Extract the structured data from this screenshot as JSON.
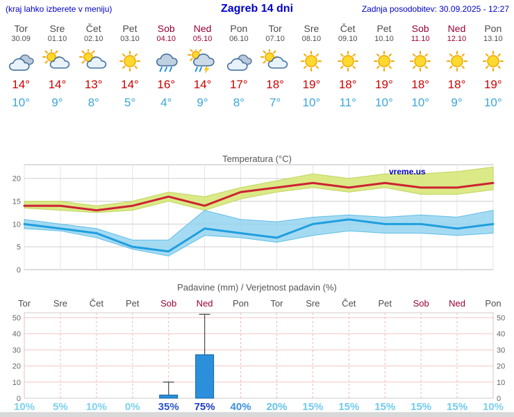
{
  "header": {
    "hint": "(kraj lahko izberete v meniju)",
    "title": "Zagreb 14 dni",
    "updated": "Zadnja posodobitev: 30.09.2025 - 12:27"
  },
  "colors": {
    "header_text": "#0000cc",
    "weekday_text": "#4d4d4d",
    "weekend_text": "#990033",
    "tmax_text": "#cc0000",
    "tmin_text": "#3aa5dd",
    "bar_fill": "#2b8fdc",
    "bar_border": "#15639f",
    "max_band_fill": "#d9e87f",
    "max_band_edge": "#c2d45e",
    "min_band_fill": "#8fd2ef",
    "min_band_edge": "#5fbde8",
    "watermark_blue": "#0000bb"
  },
  "days": [
    {
      "name": "Tor",
      "date": "30.09",
      "icon": "cloudy",
      "tmax": "14°",
      "tmin": "10°",
      "weekend": false
    },
    {
      "name": "Sre",
      "date": "01.10",
      "icon": "partly-cloudy",
      "tmax": "14°",
      "tmin": "9°",
      "weekend": false
    },
    {
      "name": "Čet",
      "date": "02.10",
      "icon": "partly-cloudy",
      "tmax": "13°",
      "tmin": "8°",
      "weekend": false
    },
    {
      "name": "Pet",
      "date": "03.10",
      "icon": "sunny",
      "tmax": "14°",
      "tmin": "5°",
      "weekend": false
    },
    {
      "name": "Sob",
      "date": "04.10",
      "icon": "rain",
      "tmax": "16°",
      "tmin": "4°",
      "weekend": true
    },
    {
      "name": "Ned",
      "date": "05.10",
      "icon": "thunder-showers",
      "tmax": "14°",
      "tmin": "9°",
      "weekend": true
    },
    {
      "name": "Pon",
      "date": "06.10",
      "icon": "cloudy",
      "tmax": "17°",
      "tmin": "8°",
      "weekend": false
    },
    {
      "name": "Tor",
      "date": "07.10",
      "icon": "partly-cloudy",
      "tmax": "18°",
      "tmin": "7°",
      "weekend": false
    },
    {
      "name": "Sre",
      "date": "08.10",
      "icon": "sunny",
      "tmax": "19°",
      "tmin": "10°",
      "weekend": false
    },
    {
      "name": "Čet",
      "date": "09.10",
      "icon": "sunny",
      "tmax": "18°",
      "tmin": "11°",
      "weekend": false
    },
    {
      "name": "Pet",
      "date": "10.10",
      "icon": "sunny",
      "tmax": "19°",
      "tmin": "10°",
      "weekend": false
    },
    {
      "name": "Sob",
      "date": "11.10",
      "icon": "sunny",
      "tmax": "18°",
      "tmin": "10°",
      "weekend": true
    },
    {
      "name": "Ned",
      "date": "12.10",
      "icon": "sunny",
      "tmax": "18°",
      "tmin": "9°",
      "weekend": true
    },
    {
      "name": "Pon",
      "date": "13.10",
      "icon": "sunny",
      "tmax": "19°",
      "tmin": "10°",
      "weekend": false
    }
  ],
  "chart_data": [
    {
      "type": "line",
      "title": "Temperatura (°C)",
      "watermark": "vreme.us",
      "x_labels": [
        "Tor 30.09",
        "Sre 01.10",
        "Čet 02.10",
        "Pet 03.10",
        "Sob 04.10",
        "Ned 05.10",
        "Pon 06.10",
        "Tor 07.10",
        "Sre 08.10",
        "Čet 09.10",
        "Pet 10.10",
        "Sob 11.10",
        "Ned 12.10",
        "Pon 13.10"
      ],
      "ylim": [
        0,
        23
      ],
      "yticks": [
        0,
        5,
        10,
        15,
        20
      ],
      "grid": true,
      "series": [
        {
          "name": "max-temp",
          "color": "#cc2233",
          "values": [
            14,
            14,
            13,
            14,
            16,
            14,
            17,
            18,
            19,
            18,
            19,
            18,
            18,
            19
          ]
        },
        {
          "name": "min-temp",
          "color": "#1f9ede",
          "values": [
            10,
            9,
            8,
            5,
            4,
            9,
            8,
            7,
            10,
            11,
            10,
            10,
            9,
            10
          ]
        },
        {
          "name": "max-range-upper",
          "color": "#d9e87f",
          "values": [
            15,
            15,
            14,
            15,
            17,
            16,
            18,
            19.5,
            21,
            20,
            21,
            21,
            21.5,
            22.5
          ]
        },
        {
          "name": "max-range-lower",
          "color": "#d9e87f",
          "values": [
            13.5,
            13,
            12.5,
            13,
            15,
            13,
            15.5,
            17,
            18,
            17,
            18,
            16.5,
            16.5,
            17.5
          ]
        },
        {
          "name": "min-range-upper",
          "color": "#8fd2ef",
          "values": [
            11,
            10,
            9,
            6.5,
            6.5,
            13,
            11,
            10.5,
            11.5,
            12,
            11.5,
            12,
            11.5,
            13
          ]
        },
        {
          "name": "min-range-lower",
          "color": "#8fd2ef",
          "values": [
            9,
            8.5,
            7,
            4.5,
            3,
            7.5,
            7,
            6,
            7.5,
            8.5,
            8,
            8,
            7.5,
            8
          ]
        }
      ]
    },
    {
      "type": "bar",
      "title": "Padavine (mm) / Verjetnost padavin (%)",
      "categories": [
        "Tor",
        "Sre",
        "Čet",
        "Pet",
        "Sob",
        "Ned",
        "Pon",
        "Tor",
        "Sre",
        "Čet",
        "Pet",
        "Sob",
        "Ned",
        "Pon"
      ],
      "weekend_flags": [
        false,
        false,
        false,
        false,
        true,
        true,
        false,
        false,
        false,
        false,
        false,
        true,
        true,
        false
      ],
      "values_mm": [
        0,
        0,
        0,
        0,
        2,
        27,
        0,
        0,
        0,
        0,
        0,
        0,
        0,
        0
      ],
      "whisker_high_mm": [
        0,
        0,
        0,
        0,
        10,
        52,
        0,
        0,
        0,
        0,
        0,
        0,
        0,
        0
      ],
      "probabilities": [
        "10%",
        "5%",
        "10%",
        "0%",
        "35%",
        "75%",
        "40%",
        "20%",
        "15%",
        "15%",
        "15%",
        "15%",
        "15%",
        "10%"
      ],
      "prob_colors": [
        "#7bd0f0",
        "#7bd0f0",
        "#7bd0f0",
        "#7bd0f0",
        "#2b55c8",
        "#1a3cc0",
        "#3f8fd8",
        "#63c2ea",
        "#70cbee",
        "#70cbee",
        "#70cbee",
        "#70cbee",
        "#70cbee",
        "#7bd0f0"
      ],
      "ylim": [
        0,
        53
      ],
      "yticks": [
        0,
        10,
        20,
        30,
        40,
        50
      ],
      "grid": true
    }
  ]
}
